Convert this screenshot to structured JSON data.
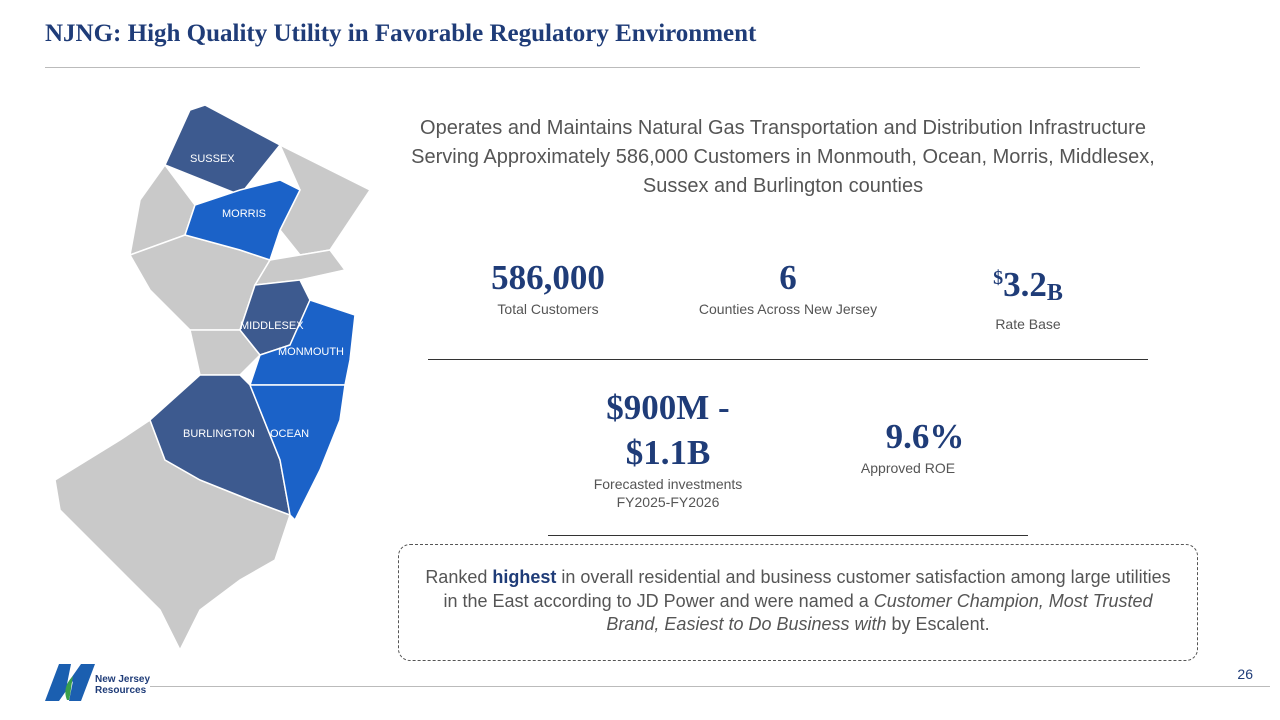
{
  "header": {
    "title": "NJNG: High Quality Utility in Favorable Regulatory Environment"
  },
  "map": {
    "counties": [
      "SUSSEX",
      "MORRIS",
      "MIDDLESEX",
      "MONMOUTH",
      "BURLINGTON",
      "OCEAN"
    ]
  },
  "intro": "Operates and Maintains Natural Gas Transportation and Distribution Infrastructure Serving Approximately 586,000 Customers in Monmouth, Ocean, Morris, Middlesex, Sussex and Burlington counties",
  "stats": [
    {
      "value": "586,000",
      "label": "Total Customers"
    },
    {
      "value": "6",
      "label": "Counties Across New Jersey"
    },
    {
      "value_parts": [
        "$",
        "3.2",
        "B"
      ],
      "label": "Rate Base"
    },
    {
      "value": "$900M - $1.1B",
      "label": "Forecasted investments FY2025-FY2026"
    },
    {
      "value": "9.6%",
      "label": "Approved ROE"
    }
  ],
  "callout": [
    {
      "text": "Ranked ",
      "style": "normal"
    },
    {
      "text": "highest",
      "style": "bold"
    },
    {
      "text": " in overall residential and business customer satisfaction among large utilities in the East according to JD Power and were named a ",
      "style": "normal"
    },
    {
      "text": "Customer Champion, Most Trusted Brand, Easiest to Do Business with",
      "style": "italic"
    },
    {
      "text": " by Escalent.",
      "style": "normal"
    }
  ],
  "footer": {
    "logo": "New Jersey Resources",
    "page": "26"
  }
}
